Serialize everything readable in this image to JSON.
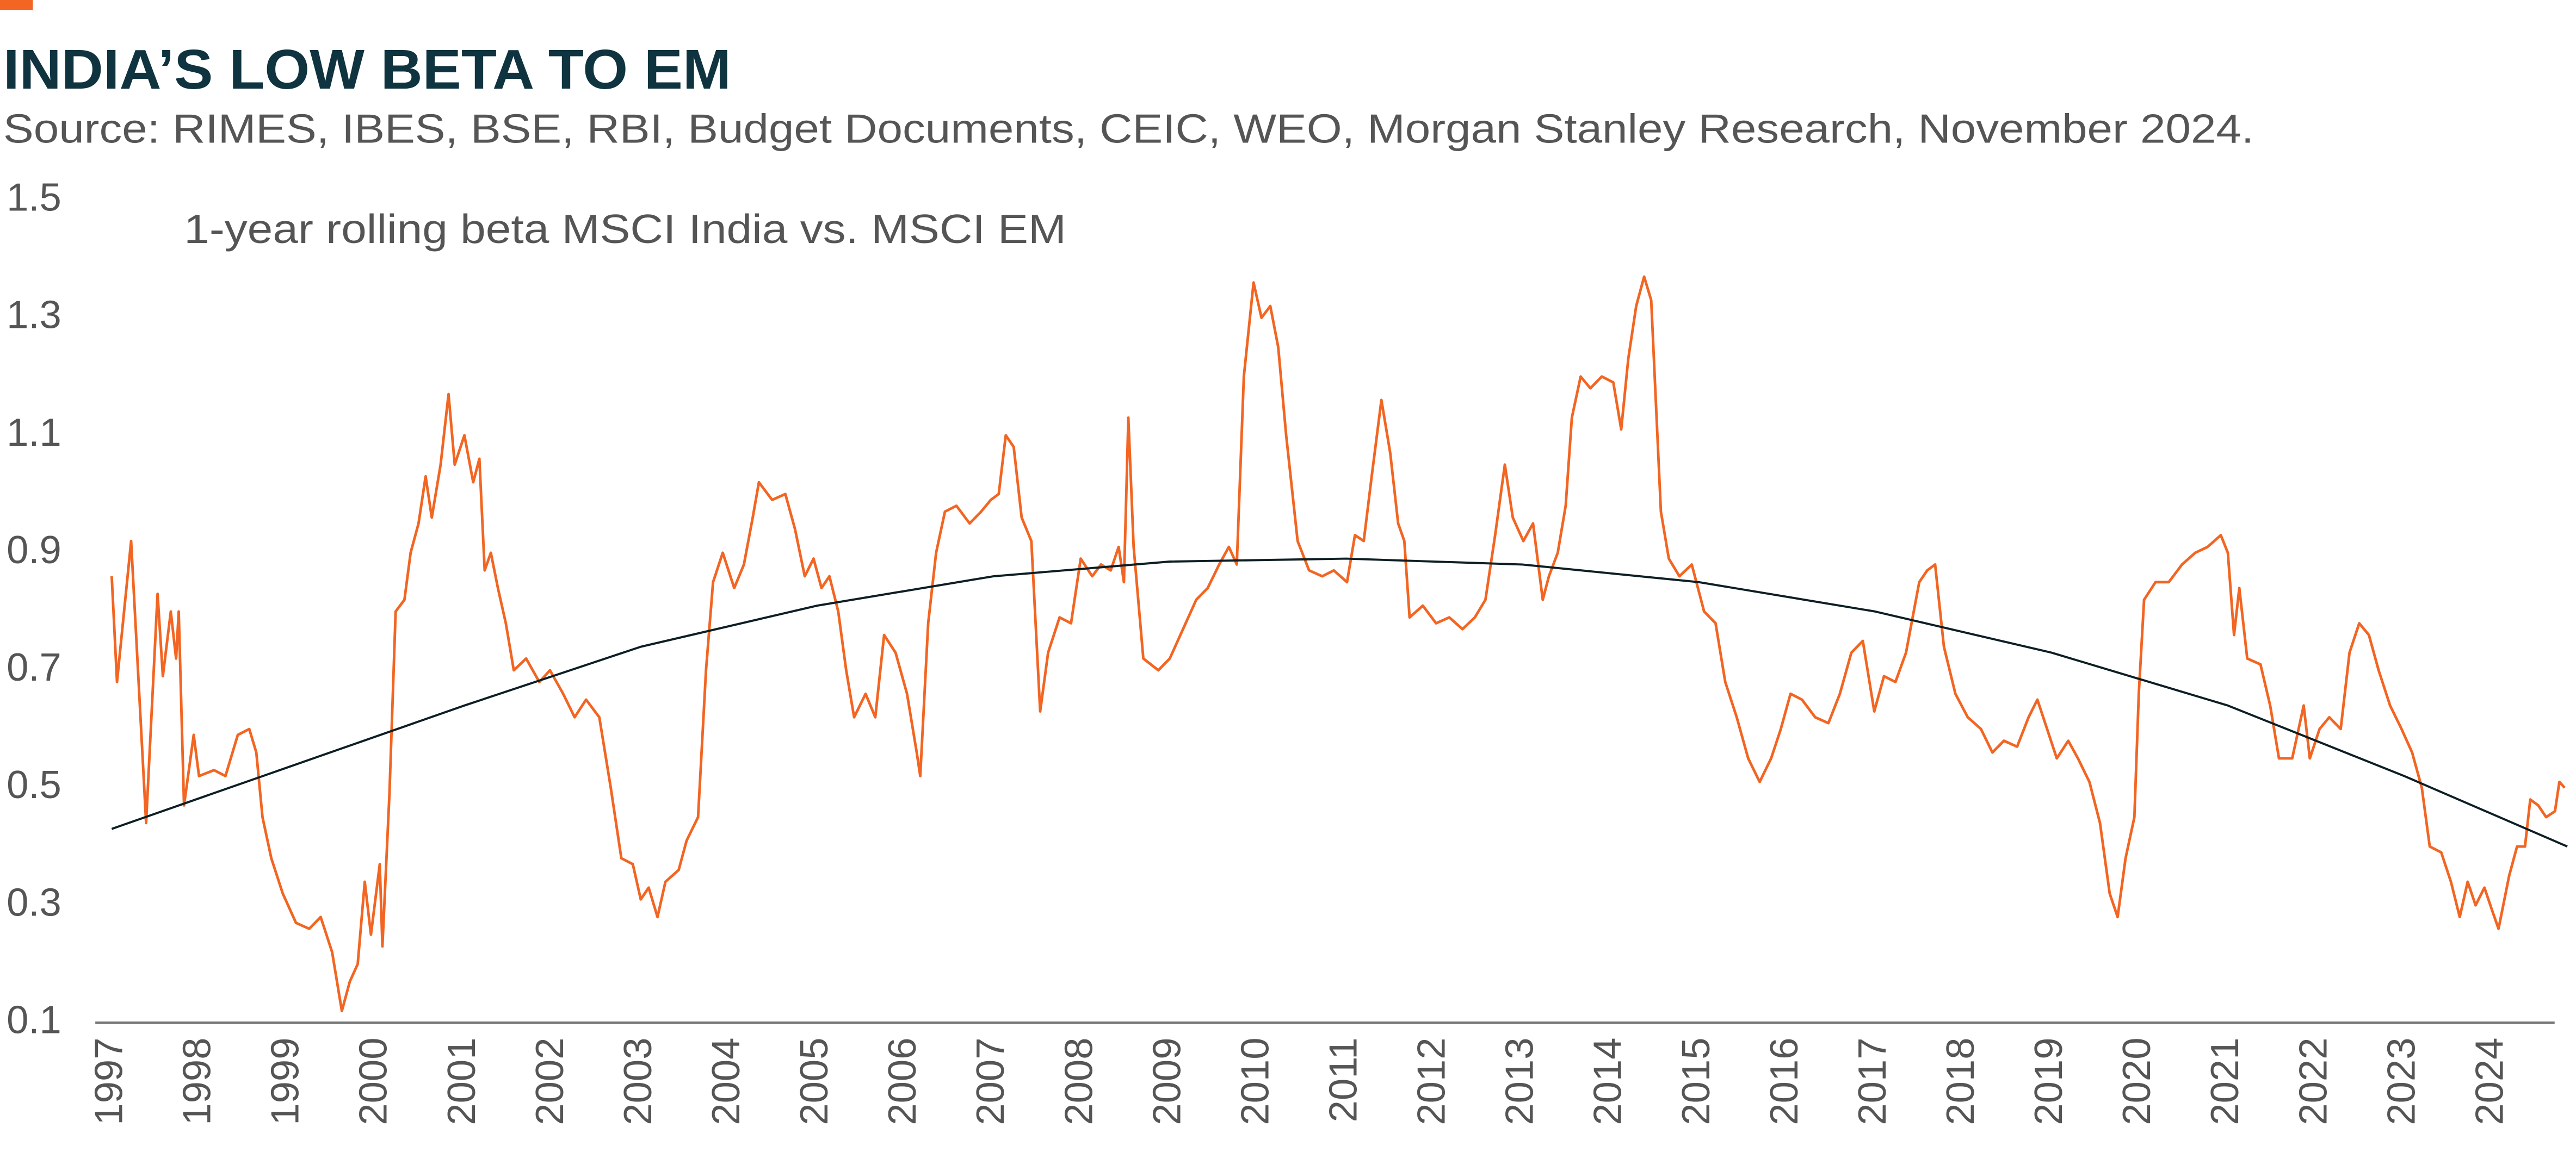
{
  "chart_data": {
    "type": "line",
    "title": "INDIA’S LOW BETA TO EM",
    "subtitle": "Source: RIMES, IBES, BSE, RBI, Budget Documents, CEIC, WEO, Morgan Stanley Research, November 2024.",
    "annotation": "1-year rolling beta MSCI India vs. MSCI EM",
    "xlim": [
      1997,
      2024.85
    ],
    "xticks": [
      1997,
      1998,
      1999,
      2000,
      2001,
      2002,
      2003,
      2004,
      2005,
      2006,
      2007,
      2008,
      2009,
      2010,
      2011,
      2012,
      2013,
      2014,
      2015,
      2016,
      2017,
      2018,
      2019,
      2020,
      2021,
      2022,
      2023,
      2024
    ],
    "ylim": [
      0.1,
      1.5
    ],
    "yticks": [
      0.1,
      0.3,
      0.5,
      0.7,
      0.9,
      1.1,
      1.3,
      1.5
    ],
    "grid": false,
    "series": [
      {
        "name": "1-year rolling beta MSCI India vs. MSCI EM",
        "color": "#f26522",
        "x": [
          1997,
          1997.06,
          1997.22,
          1997.39,
          1997.52,
          1997.58,
          1997.67,
          1997.73,
          1997.76,
          1997.82,
          1997.93,
          1997.99,
          1998.16,
          1998.29,
          1998.43,
          1998.56,
          1998.64,
          1998.71,
          1998.81,
          1998.94,
          1999.09,
          1999.24,
          1999.37,
          1999.5,
          1999.61,
          1999.7,
          1999.79,
          1999.87,
          1999.94,
          2000.04,
          2000.07,
          2000.15,
          2000.22,
          2000.32,
          2000.39,
          2000.48,
          2000.56,
          2000.63,
          2000.73,
          2000.82,
          2000.89,
          2001,
          2001.1,
          2001.17,
          2001.23,
          2001.3,
          2001.38,
          2001.47,
          2001.56,
          2001.7,
          2001.85,
          2001.97,
          2002.12,
          2002.25,
          2002.38,
          2002.53,
          2002.66,
          2002.78,
          2002.91,
          2003,
          2003.09,
          2003.19,
          2003.28,
          2003.43,
          2003.52,
          2003.65,
          2003.74,
          2003.82,
          2003.93,
          2004.06,
          2004.17,
          2004.27,
          2004.34,
          2004.49,
          2004.64,
          2004.75,
          2004.86,
          2004.96,
          2005.05,
          2005.14,
          2005.24,
          2005.33,
          2005.42,
          2005.55,
          2005.66,
          2005.76,
          2005.89,
          2006.02,
          2006.13,
          2006.17,
          2006.26,
          2006.35,
          2006.45,
          2006.58,
          2006.73,
          2006.86,
          2006.97,
          2007.06,
          2007.14,
          2007.23,
          2007.32,
          2007.43,
          2007.53,
          2007.62,
          2007.75,
          2007.88,
          2007.99,
          2008.12,
          2008.22,
          2008.33,
          2008.42,
          2008.48,
          2008.53,
          2008.59,
          2008.7,
          2008.87,
          2009,
          2009.15,
          2009.3,
          2009.43,
          2009.56,
          2009.67,
          2009.76,
          2009.84,
          2009.95,
          2010.04,
          2010.14,
          2010.23,
          2010.32,
          2010.45,
          2010.58,
          2010.73,
          2010.86,
          2011.01,
          2011.1,
          2011.2,
          2011.29,
          2011.4,
          2011.5,
          2011.59,
          2011.66,
          2011.72,
          2011.87,
          2012.02,
          2012.17,
          2012.32,
          2012.46,
          2012.58,
          2012.69,
          2012.8,
          2012.89,
          2013.01,
          2013.12,
          2013.23,
          2013.3,
          2013.4,
          2013.49,
          2013.56,
          2013.66,
          2013.77,
          2013.9,
          2014.03,
          2014.12,
          2014.2,
          2014.29,
          2014.38,
          2014.46,
          2014.57,
          2014.66,
          2014.78,
          2014.92,
          2015.06,
          2015.19,
          2015.3,
          2015.43,
          2015.56,
          2015.69,
          2015.82,
          2015.93,
          2016.04,
          2016.17,
          2016.32,
          2016.47,
          2016.6,
          2016.73,
          2016.86,
          2016.99,
          2017.1,
          2017.23,
          2017.35,
          2017.5,
          2017.59,
          2017.68,
          2017.78,
          2017.91,
          2018.05,
          2018.2,
          2018.33,
          2018.46,
          2018.61,
          2018.74,
          2018.84,
          2018.95,
          2019.06,
          2019.19,
          2019.3,
          2019.43,
          2019.55,
          2019.66,
          2019.75,
          2019.84,
          2019.94,
          2019.99,
          2020.05,
          2020.18,
          2020.33,
          2020.48,
          2020.63,
          2020.77,
          2020.92,
          2021,
          2021.07,
          2021.13,
          2021.22,
          2021.37,
          2021.48,
          2021.58,
          2021.73,
          2021.86,
          2021.93,
          2022.04,
          2022.15,
          2022.28,
          2022.38,
          2022.49,
          2022.6,
          2022.71,
          2022.84,
          2022.97,
          2023.09,
          2023.2,
          2023.29,
          2023.42,
          2023.53,
          2023.63,
          2023.72,
          2023.81,
          2023.91,
          2024,
          2024.07,
          2024.19,
          2024.28,
          2024.37,
          2024.43,
          2024.52,
          2024.61,
          2024.71,
          2024.76,
          2024.82
        ],
        "values": [
          0.86,
          0.68,
          0.92,
          0.44,
          0.83,
          0.69,
          0.8,
          0.72,
          0.8,
          0.47,
          0.59,
          0.52,
          0.53,
          0.52,
          0.59,
          0.6,
          0.56,
          0.45,
          0.38,
          0.32,
          0.27,
          0.26,
          0.28,
          0.22,
          0.12,
          0.17,
          0.2,
          0.34,
          0.25,
          0.37,
          0.23,
          0.49,
          0.8,
          0.82,
          0.9,
          0.95,
          1.03,
          0.96,
          1.05,
          1.17,
          1.05,
          1.1,
          1.02,
          1.06,
          0.87,
          0.9,
          0.84,
          0.78,
          0.7,
          0.72,
          0.68,
          0.7,
          0.66,
          0.62,
          0.65,
          0.62,
          0.5,
          0.38,
          0.37,
          0.31,
          0.33,
          0.28,
          0.34,
          0.36,
          0.41,
          0.45,
          0.7,
          0.85,
          0.9,
          0.84,
          0.88,
          0.96,
          1.02,
          0.99,
          1.0,
          0.94,
          0.86,
          0.89,
          0.84,
          0.86,
          0.8,
          0.7,
          0.62,
          0.66,
          0.62,
          0.76,
          0.73,
          0.66,
          0.56,
          0.52,
          0.78,
          0.9,
          0.97,
          0.98,
          0.95,
          0.97,
          0.99,
          1.0,
          1.1,
          1.08,
          0.96,
          0.92,
          0.63,
          0.73,
          0.79,
          0.78,
          0.89,
          0.86,
          0.88,
          0.87,
          0.91,
          0.85,
          1.13,
          0.91,
          0.72,
          0.7,
          0.72,
          0.77,
          0.82,
          0.84,
          0.88,
          0.91,
          0.88,
          1.2,
          1.36,
          1.3,
          1.32,
          1.25,
          1.1,
          0.92,
          0.87,
          0.86,
          0.87,
          0.85,
          0.93,
          0.92,
          1.03,
          1.16,
          1.07,
          0.95,
          0.92,
          0.79,
          0.81,
          0.78,
          0.79,
          0.77,
          0.79,
          0.82,
          0.93,
          1.05,
          0.96,
          0.92,
          0.95,
          0.82,
          0.86,
          0.9,
          0.98,
          1.13,
          1.2,
          1.18,
          1.2,
          1.19,
          1.11,
          1.23,
          1.32,
          1.37,
          1.33,
          0.97,
          0.89,
          0.86,
          0.88,
          0.8,
          0.78,
          0.68,
          0.62,
          0.55,
          0.51,
          0.55,
          0.6,
          0.66,
          0.65,
          0.62,
          0.61,
          0.66,
          0.73,
          0.75,
          0.63,
          0.69,
          0.68,
          0.73,
          0.85,
          0.87,
          0.88,
          0.74,
          0.66,
          0.62,
          0.6,
          0.56,
          0.58,
          0.57,
          0.62,
          0.65,
          0.6,
          0.55,
          0.58,
          0.55,
          0.51,
          0.44,
          0.32,
          0.28,
          0.38,
          0.45,
          0.66,
          0.82,
          0.85,
          0.85,
          0.88,
          0.9,
          0.91,
          0.93,
          0.9,
          0.76,
          0.84,
          0.72,
          0.71,
          0.64,
          0.55,
          0.55,
          0.64,
          0.55,
          0.6,
          0.62,
          0.6,
          0.73,
          0.78,
          0.76,
          0.7,
          0.64,
          0.6,
          0.56,
          0.5,
          0.4,
          0.39,
          0.34,
          0.28,
          0.34,
          0.3,
          0.33,
          0.29,
          0.26,
          0.35,
          0.4,
          0.4,
          0.48,
          0.47,
          0.45,
          0.46,
          0.51,
          0.5
        ]
      },
      {
        "color": "#0d1f24",
        "x": [
          1997,
          1999,
          2001,
          2003,
          2005,
          2007,
          2009,
          2011,
          2013,
          2015,
          2017,
          2019,
          2021,
          2023,
          2024.85
        ],
        "values": [
          0.43,
          0.535,
          0.64,
          0.74,
          0.81,
          0.86,
          0.885,
          0.89,
          0.88,
          0.85,
          0.8,
          0.73,
          0.64,
          0.52,
          0.4
        ]
      }
    ]
  }
}
